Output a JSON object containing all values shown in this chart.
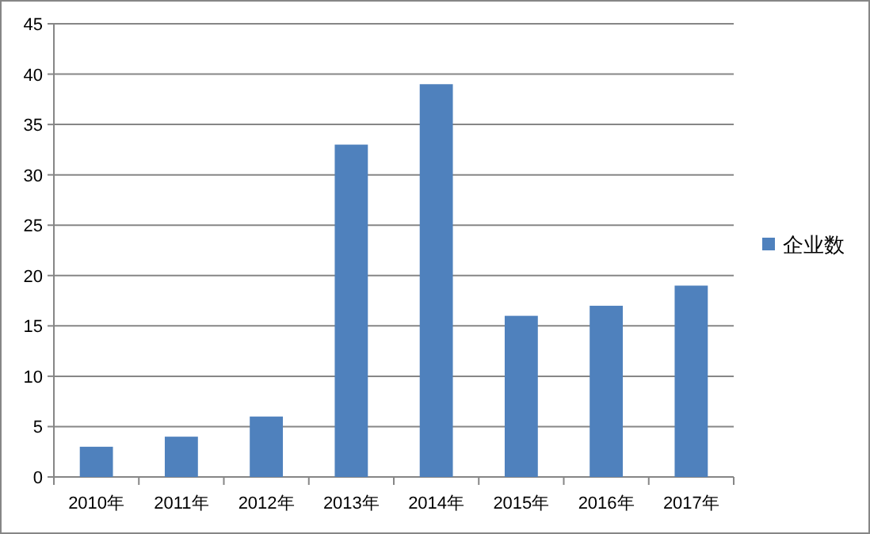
{
  "chart_data": {
    "type": "bar",
    "categories": [
      "2010年",
      "2011年",
      "2012年",
      "2013年",
      "2014年",
      "2015年",
      "2016年",
      "2017年"
    ],
    "series": [
      {
        "name": "企业数",
        "color": "#4f81bd",
        "values": [
          3,
          4,
          6,
          33,
          39,
          16,
          17,
          19
        ]
      }
    ],
    "ylim": [
      0,
      45
    ],
    "yticks": [
      0,
      5,
      10,
      15,
      20,
      25,
      30,
      35,
      40,
      45
    ],
    "grid": "y",
    "legend": "right"
  }
}
